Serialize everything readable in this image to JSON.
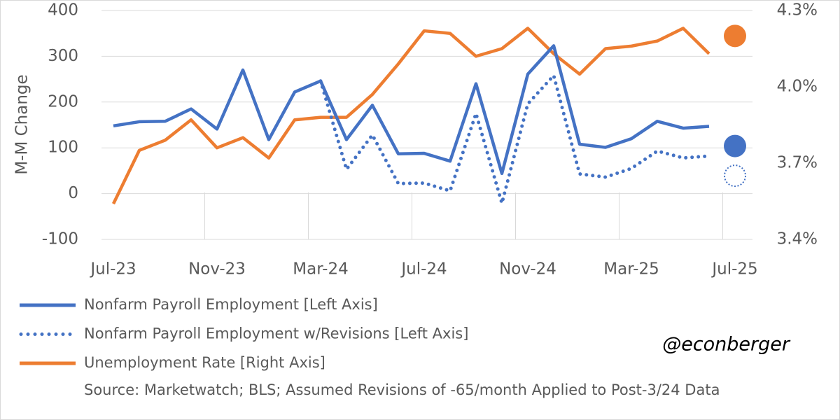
{
  "chart_data": {
    "type": "line",
    "y_label": "M-M Change",
    "categories": [
      "Jul-23",
      null,
      null,
      null,
      "Nov-23",
      null,
      null,
      null,
      "Mar-24",
      null,
      null,
      null,
      "Jul-24",
      null,
      null,
      null,
      "Nov-24",
      null,
      null,
      null,
      "Mar-25",
      null,
      null,
      null,
      "Jul-25"
    ],
    "ylim": [
      -100,
      400
    ],
    "yticks": [
      -100,
      0,
      100,
      200,
      300,
      400
    ],
    "y2lim": [
      3.4,
      4.3
    ],
    "y2ticks": [
      {
        "value": 3.4,
        "label": "3.4%"
      },
      {
        "value": 3.7,
        "label": "3.7%"
      },
      {
        "value": 4.0,
        "label": "4.0%"
      },
      {
        "value": 4.3,
        "label": "4.3%"
      }
    ],
    "grid": true,
    "series": [
      {
        "name": "Nonfarm Payroll Employment [Left Axis]",
        "color": "#4472c4",
        "style": "solid",
        "values": [
          148,
          157,
          158,
          185,
          141,
          270,
          118,
          222,
          246,
          118,
          193,
          87,
          88,
          71,
          240,
          44,
          261,
          323,
          108,
          101,
          120,
          158,
          143,
          147,
          null
        ],
        "latest": 104
      },
      {
        "name": "Nonfarm Payroll Employment w/Revisions [Left Axis]",
        "color": "#4472c4",
        "style": "dotted",
        "values": [
          null,
          null,
          null,
          null,
          null,
          null,
          null,
          null,
          246,
          53,
          128,
          22,
          23,
          6,
          175,
          -21,
          196,
          258,
          43,
          36,
          55,
          93,
          78,
          82,
          null
        ],
        "latest": 39
      },
      {
        "name": "Unemployment Rate [Right Axis]",
        "color": "#ed7d31",
        "style": "solid",
        "axis": "y2",
        "values": [
          3.54,
          3.75,
          3.79,
          3.87,
          3.76,
          3.8,
          3.72,
          3.87,
          3.88,
          3.88,
          3.97,
          4.09,
          4.22,
          4.21,
          4.12,
          4.15,
          4.23,
          4.13,
          4.05,
          4.15,
          4.16,
          4.18,
          4.23,
          4.13,
          null
        ],
        "latest": 4.2
      }
    ],
    "source": "Source: Marketwatch; BLS; Assumed Revisions of -65/month Applied to Post-3/24 Data",
    "annotation": "@econberger"
  }
}
